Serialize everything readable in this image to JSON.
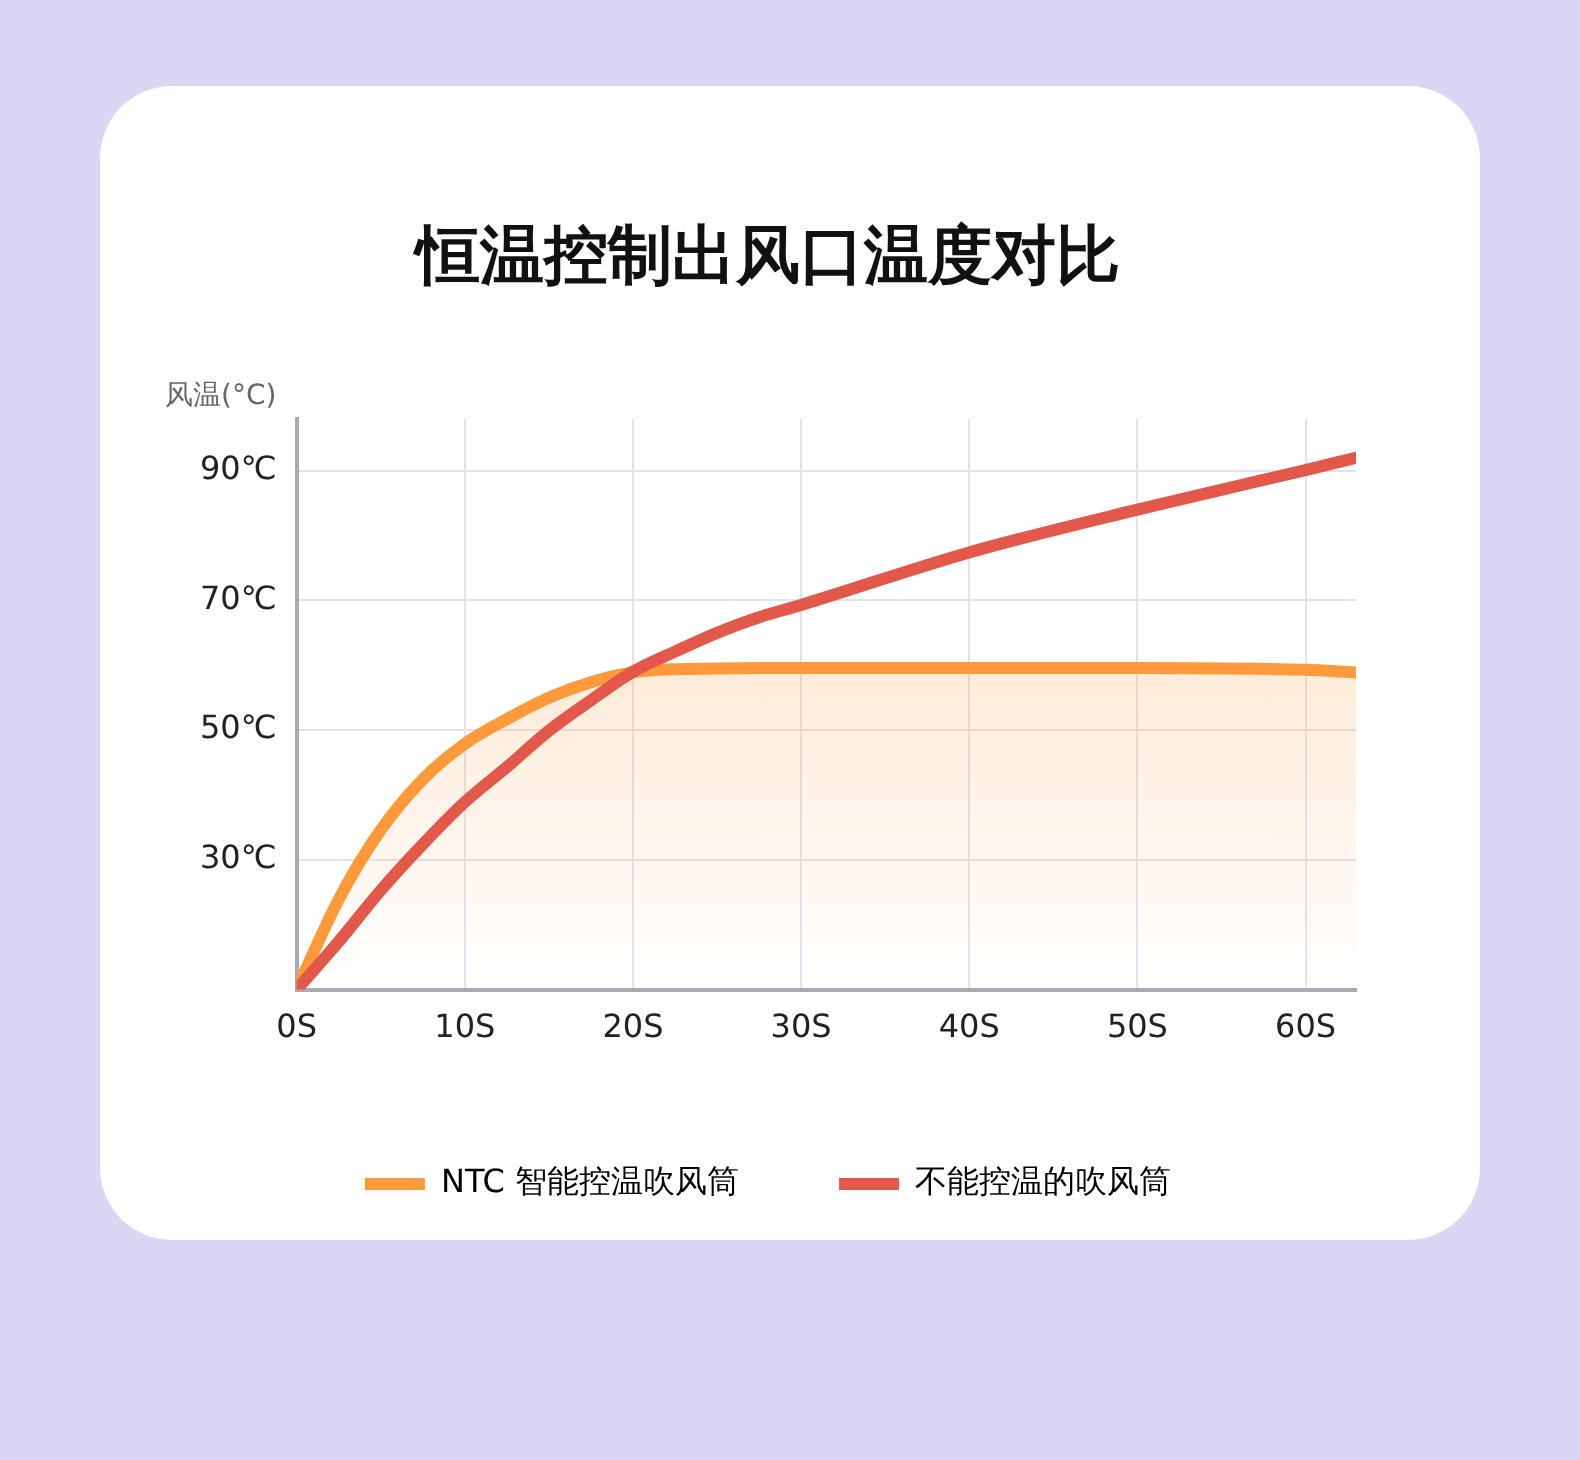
{
  "chart_data": {
    "type": "line",
    "title": "恒温控制出风口温度对比",
    "ylabel": "风温(°C)",
    "x": [
      0,
      2.5,
      5,
      7.5,
      10,
      12.5,
      15,
      17.5,
      20,
      22.5,
      25,
      27.5,
      30,
      40,
      50,
      60,
      63
    ],
    "series": [
      {
        "name": "NTC 智能控温吹风筒",
        "color": "#ff9a3c",
        "type": "area",
        "values": [
          10,
          23.9,
          34.6,
          42.4,
          47.9,
          51.7,
          55,
          57.4,
          58.9,
          59.4,
          59.5,
          59.6,
          59.6,
          59.6,
          59.6,
          59.3,
          58.9
        ]
      },
      {
        "name": "不能控温的吹风筒",
        "color": "#e2584a",
        "values": [
          10,
          17.4,
          25.3,
          32.4,
          38.9,
          44.3,
          49.9,
          54.6,
          59,
          62.1,
          65,
          67.4,
          69.3,
          77.4,
          84,
          90.1,
          92
        ]
      }
    ],
    "xlim": [
      0,
      63
    ],
    "ylim": [
      10,
      98
    ],
    "xticks": [
      {
        "value": 0,
        "label": "0S"
      },
      {
        "value": 10,
        "label": "10S"
      },
      {
        "value": 20,
        "label": "20S"
      },
      {
        "value": 30,
        "label": "30S"
      },
      {
        "value": 40,
        "label": "40S"
      },
      {
        "value": 50,
        "label": "50S"
      },
      {
        "value": 60,
        "label": "60S"
      }
    ],
    "yticks": [
      {
        "value": 30,
        "label": "30℃"
      },
      {
        "value": 50,
        "label": "50℃"
      },
      {
        "value": 70,
        "label": "70℃"
      },
      {
        "value": 90,
        "label": "90℃"
      }
    ],
    "grid": true,
    "legend": "bottom",
    "marker": "none",
    "line_style": "solid"
  }
}
